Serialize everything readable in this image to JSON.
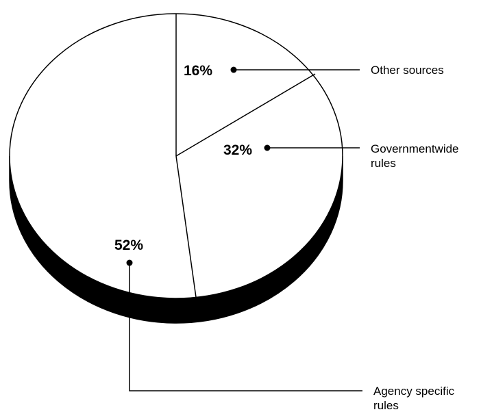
{
  "chart_data": {
    "type": "pie",
    "title": "",
    "slices": [
      {
        "label": "Other sources",
        "value": 16,
        "value_label": "16%"
      },
      {
        "label": "Governmentwide rules",
        "value": 32,
        "value_label": "32%"
      },
      {
        "label": "Agency specific rules",
        "value": 52,
        "value_label": "52%"
      }
    ],
    "style": "3d",
    "legend": "callout-lines-right"
  },
  "labels": {
    "other": [
      "Other sources"
    ],
    "govt": [
      "Governmentwide",
      "rules"
    ],
    "agency": [
      "Agency specific",
      "rules"
    ]
  },
  "colors": {
    "slice_fill": "#ffffff",
    "outline": "#000000",
    "depth": "#000000"
  }
}
